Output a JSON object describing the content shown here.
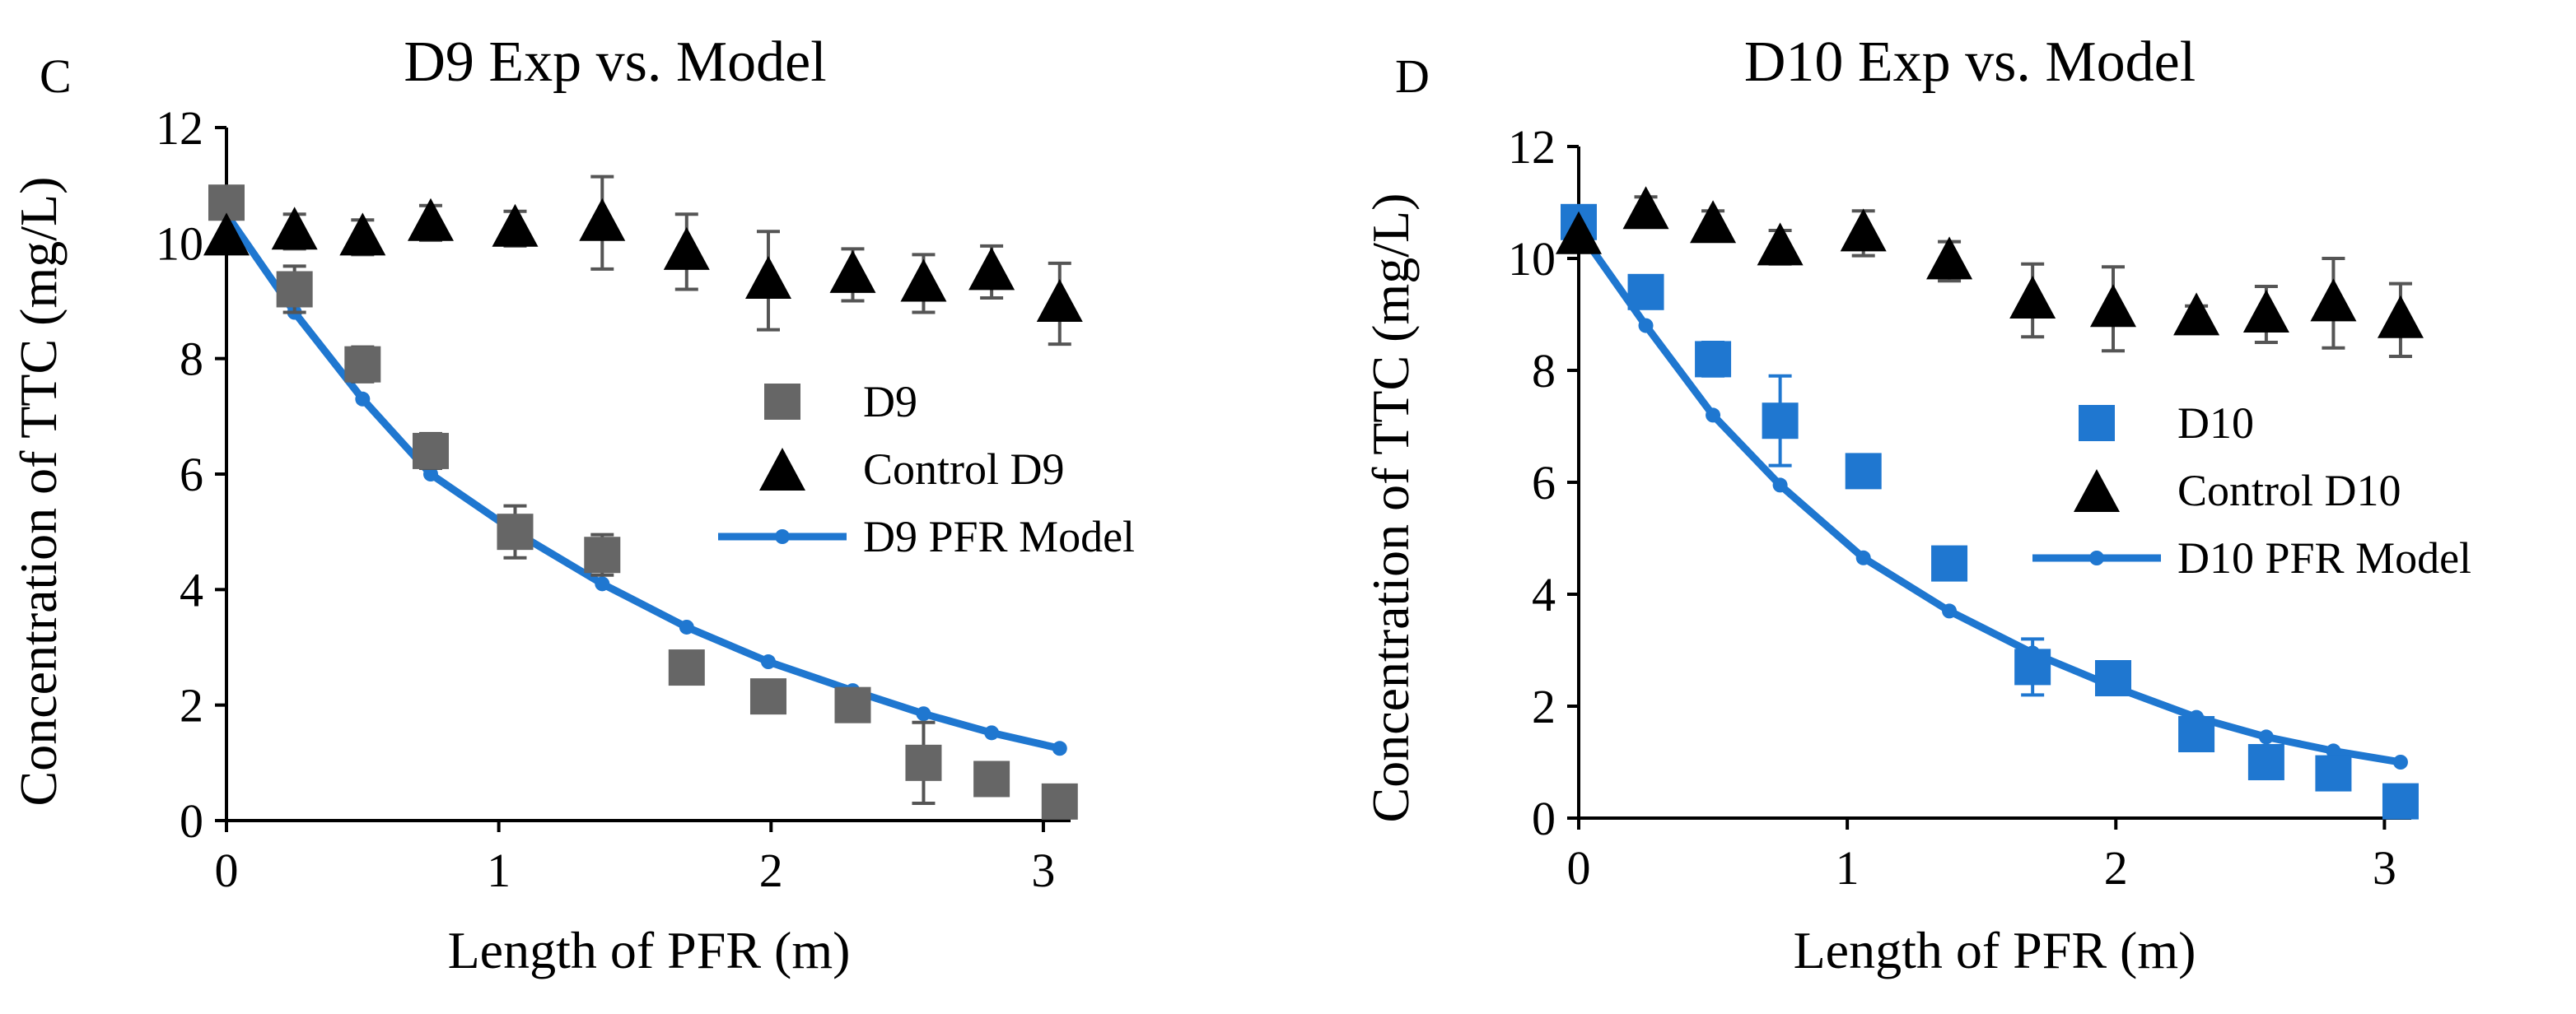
{
  "chart_data": [
    {
      "type": "scatter",
      "panel_label": "C",
      "title": "D9 Exp vs. Model",
      "xlabel": "Length of PFR (m)",
      "ylabel": "Concentration of TTC (mg/L)",
      "xlim": [
        0,
        3.1
      ],
      "ylim": [
        0,
        12
      ],
      "xticks": [
        0,
        1,
        2,
        3
      ],
      "yticks": [
        0,
        2,
        4,
        6,
        8,
        10,
        12
      ],
      "grid": false,
      "legend_position": "center-right",
      "colors": {
        "experiment": "#666666",
        "control": "#000000",
        "model": "#1f77d0",
        "error_bar": "#555555"
      },
      "series": [
        {
          "name": "D9",
          "marker": "square",
          "x": [
            0,
            0.25,
            0.5,
            0.75,
            1.06,
            1.38,
            1.69,
            1.99,
            2.3,
            2.56,
            2.81,
            3.06
          ],
          "y": [
            10.7,
            9.2,
            7.9,
            6.4,
            5.0,
            4.6,
            2.65,
            2.15,
            2.0,
            1.0,
            0.72,
            0.33
          ],
          "error": [
            0,
            0.4,
            0.3,
            0.3,
            0.45,
            0.35,
            0,
            0,
            0,
            0.7,
            0,
            0
          ]
        },
        {
          "name": "Control D9",
          "marker": "triangle",
          "x": [
            0,
            0.25,
            0.5,
            0.75,
            1.06,
            1.38,
            1.69,
            1.99,
            2.3,
            2.56,
            2.81,
            3.06
          ],
          "y": [
            10.1,
            10.2,
            10.1,
            10.35,
            10.25,
            10.35,
            9.85,
            9.35,
            9.45,
            9.3,
            9.5,
            8.95
          ],
          "error": [
            0,
            0.3,
            0.3,
            0.3,
            0.3,
            0.8,
            0.65,
            0.85,
            0.45,
            0.5,
            0.45,
            0.7
          ]
        },
        {
          "name": "D9 PFR Model",
          "marker": "line",
          "x": [
            0,
            0.25,
            0.5,
            0.75,
            1.06,
            1.38,
            1.69,
            1.99,
            2.3,
            2.56,
            2.81,
            3.06
          ],
          "y": [
            10.5,
            8.8,
            7.3,
            6.0,
            5.0,
            4.1,
            3.35,
            2.75,
            2.25,
            1.85,
            1.52,
            1.25
          ]
        }
      ]
    },
    {
      "type": "scatter",
      "panel_label": "D",
      "title": "D10 Exp vs. Model",
      "xlabel": "Length of PFR (m)",
      "ylabel": "Concentration of TTC (mg/L)",
      "xlim": [
        0,
        3.1
      ],
      "ylim": [
        0,
        12
      ],
      "xticks": [
        0,
        1,
        2,
        3
      ],
      "yticks": [
        0,
        2,
        4,
        6,
        8,
        10,
        12
      ],
      "grid": false,
      "legend_position": "center-right",
      "colors": {
        "experiment": "#1f77d0",
        "control": "#000000",
        "model": "#1f77d0",
        "error_bar": "#1f77d0",
        "control_error_bar": "#555555"
      },
      "series": [
        {
          "name": "D10",
          "marker": "square",
          "x": [
            0,
            0.25,
            0.5,
            0.75,
            1.06,
            1.38,
            1.69,
            1.99,
            2.3,
            2.56,
            2.81,
            3.06
          ],
          "y": [
            10.65,
            9.4,
            8.2,
            7.1,
            6.2,
            4.55,
            2.7,
            2.5,
            1.5,
            1.0,
            0.8,
            0.3
          ],
          "error": [
            0,
            0.2,
            0.3,
            0.8,
            0.15,
            0.2,
            0.5,
            0.15,
            0.25,
            0.15,
            0.1,
            0
          ]
        },
        {
          "name": "Control D10",
          "marker": "triangle",
          "x": [
            0,
            0.25,
            0.5,
            0.75,
            1.06,
            1.38,
            1.69,
            1.99,
            2.3,
            2.56,
            2.81,
            3.06
          ],
          "y": [
            10.4,
            10.85,
            10.6,
            10.2,
            10.45,
            9.95,
            9.25,
            9.1,
            8.95,
            9.0,
            9.2,
            8.9
          ],
          "error": [
            0,
            0.25,
            0.25,
            0.3,
            0.4,
            0.35,
            0.65,
            0.75,
            0.2,
            0.5,
            0.8,
            0.65
          ]
        },
        {
          "name": "D10 PFR Model",
          "marker": "line",
          "x": [
            0,
            0.25,
            0.5,
            0.75,
            1.06,
            1.38,
            1.69,
            1.99,
            2.3,
            2.56,
            2.81,
            3.06
          ],
          "y": [
            10.5,
            8.8,
            7.2,
            5.95,
            4.65,
            3.7,
            2.95,
            2.35,
            1.8,
            1.45,
            1.2,
            1.0
          ]
        }
      ]
    }
  ]
}
